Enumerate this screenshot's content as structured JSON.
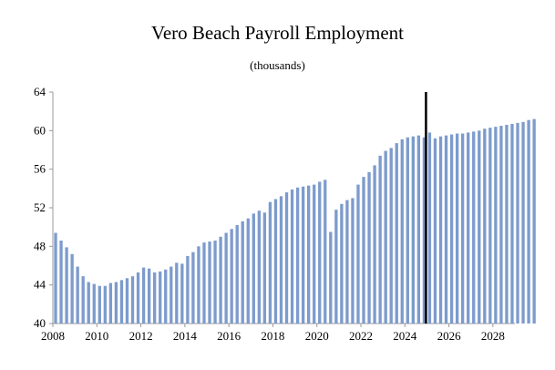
{
  "chart_data": {
    "type": "bar",
    "title": "Vero Beach Payroll Employment",
    "subtitle": "(thousands)",
    "xlabel": "",
    "ylabel": "",
    "ylim": [
      40,
      64
    ],
    "yticks": [
      "40",
      "44",
      "48",
      "52",
      "56",
      "60",
      "64"
    ],
    "xticks": [
      "2008",
      "2010",
      "2012",
      "2014",
      "2016",
      "2018",
      "2020",
      "2022",
      "2024",
      "2026",
      "2028"
    ],
    "x_start": "2008 Q1",
    "frequency": "quarterly",
    "forecast_marker": "2025 Q1",
    "bar_color": "#7d9bcc",
    "marker_color": "#000000",
    "series": [
      {
        "values": [
          49.4,
          48.6,
          47.9,
          47.2,
          45.9,
          44.9,
          44.3,
          44.1,
          43.9,
          43.9,
          44.2,
          44.3,
          44.5,
          44.7,
          44.9,
          45.3,
          45.8,
          45.7,
          45.3,
          45.4,
          45.6,
          45.9,
          46.3,
          46.2,
          47.0,
          47.4,
          48.0,
          48.4,
          48.5,
          48.6,
          49.0,
          49.4,
          49.8,
          50.2,
          50.6,
          50.9,
          51.4,
          51.7,
          51.5,
          52.6,
          52.9,
          53.2,
          53.6,
          53.9,
          54.1,
          54.2,
          54.3,
          54.4,
          54.7,
          54.9,
          49.5,
          51.8,
          52.4,
          52.8,
          53.0,
          54.4,
          55.2,
          55.7,
          56.4,
          57.4,
          57.9,
          58.2,
          58.7,
          59.1,
          59.3,
          59.4,
          59.5,
          59.3,
          59.8,
          59.2,
          59.4,
          59.5,
          59.6,
          59.7,
          59.7,
          59.8,
          59.9,
          60.0,
          60.2,
          60.3,
          60.4,
          60.5,
          60.6,
          60.7,
          60.8,
          60.9,
          61.1,
          61.2
        ]
      }
    ]
  }
}
